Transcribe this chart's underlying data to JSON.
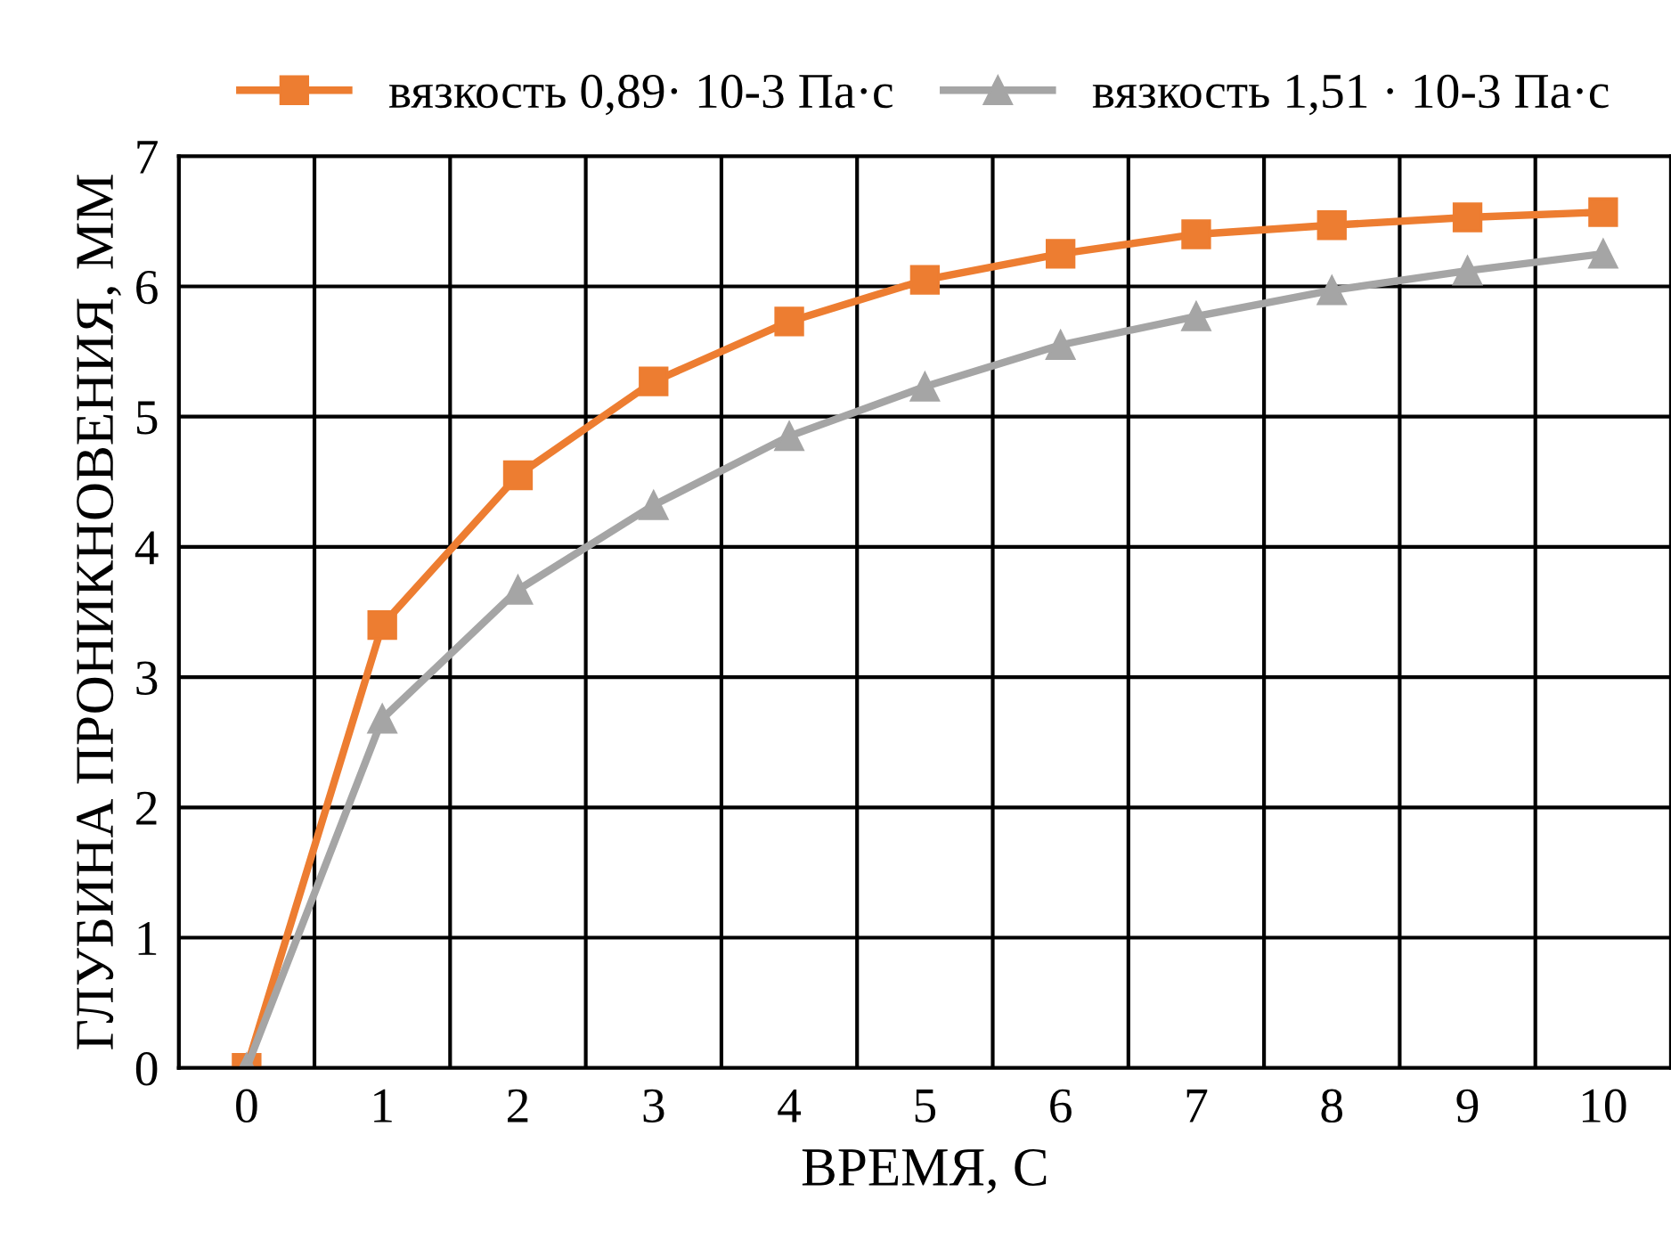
{
  "chart_data": {
    "type": "line",
    "xlabel": "ВРЕМЯ, С",
    "ylabel": "ГЛУБИНА ПРОНИКНОВЕНИЯ, ММ",
    "categories": [
      "0",
      "1",
      "2",
      "3",
      "4",
      "5",
      "6",
      "7",
      "8",
      "9",
      "10"
    ],
    "series": [
      {
        "name": "вязкость 0,89· 10-3 Па·с",
        "color": "#ed7d31",
        "marker": "square",
        "values": [
          0,
          3.4,
          4.55,
          5.27,
          5.73,
          6.05,
          6.25,
          6.4,
          6.47,
          6.53,
          6.57
        ]
      },
      {
        "name": "вязкость 1,51 · 10-3 Па·с",
        "color": "#a5a5a5",
        "marker": "triangle",
        "values": [
          0,
          2.68,
          3.67,
          4.32,
          4.85,
          5.23,
          5.55,
          5.77,
          5.97,
          6.12,
          6.25
        ]
      }
    ],
    "ylim": [
      0,
      7
    ],
    "yticks": [
      0,
      1,
      2,
      3,
      4,
      5,
      6,
      7
    ],
    "grid": true,
    "legend": "top",
    "line_style": "solid"
  }
}
